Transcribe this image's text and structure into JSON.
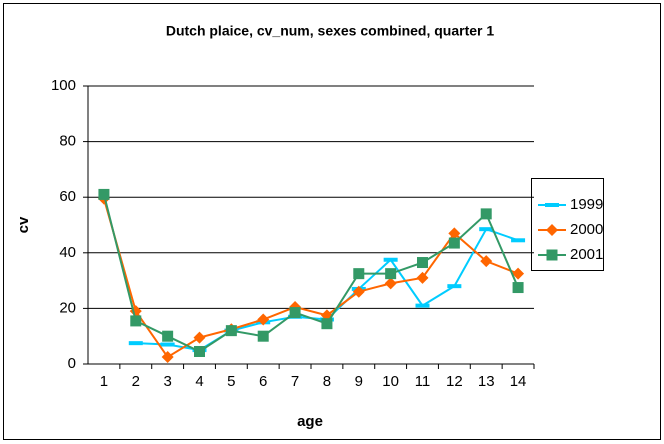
{
  "chart_data": {
    "type": "line",
    "title": "Dutch plaice, cv_num, sexes combined, quarter 1",
    "x_label": "age",
    "y_label": "cv",
    "categories": [
      "1",
      "2",
      "3",
      "4",
      "5",
      "6",
      "7",
      "8",
      "9",
      "10",
      "11",
      "12",
      "13",
      "14"
    ],
    "series": [
      {
        "name": "1999",
        "color": "#00ccff",
        "marker": "dash",
        "values": [
          null,
          7.5,
          7,
          5,
          12,
          15,
          17,
          16,
          27,
          37.5,
          21,
          28,
          48.5,
          44.5
        ]
      },
      {
        "name": "2000",
        "color": "#ff6600",
        "marker": "diamond",
        "values": [
          59.5,
          19,
          2.5,
          9.5,
          12.5,
          16,
          20.5,
          17.5,
          26,
          29,
          31,
          47,
          37,
          32.5
        ]
      },
      {
        "name": "2001",
        "color": "#339966",
        "marker": "square",
        "values": [
          61,
          15.5,
          10,
          4.5,
          12,
          10,
          18.5,
          14.5,
          32.5,
          32.5,
          36.5,
          43.5,
          54,
          27.5
        ]
      }
    ],
    "ylim": [
      0,
      100
    ],
    "yticks": [
      0,
      20,
      40,
      60,
      80,
      100
    ],
    "grid": true,
    "legend": "right"
  }
}
